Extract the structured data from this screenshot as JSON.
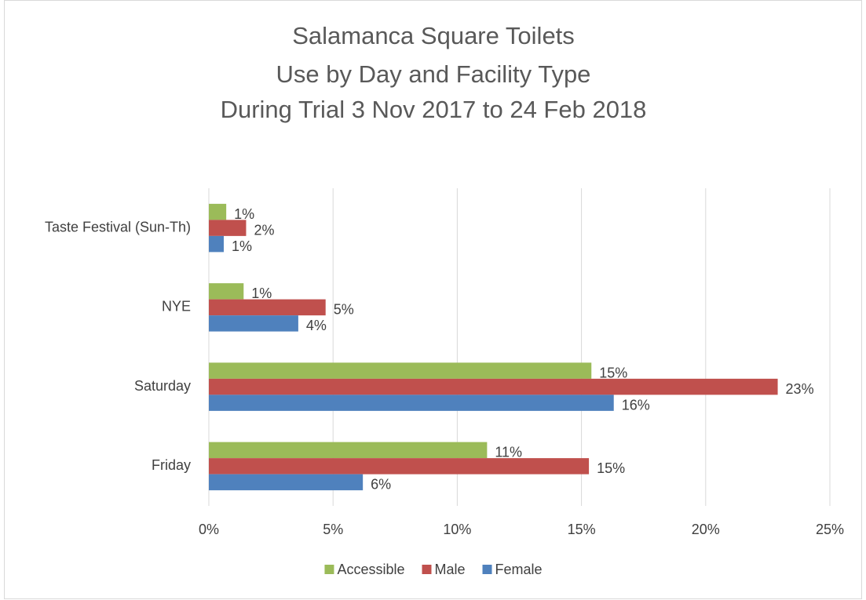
{
  "chart_data": {
    "type": "hbar",
    "title": [
      "Salamanca Square Toilets",
      "Use by Day and Facility Type",
      "During Trial 3 Nov 2017 to 24 Feb 2018"
    ],
    "categories": [
      "Friday",
      "Saturday",
      "NYE",
      "Taste Festival (Sun-Th)"
    ],
    "series": [
      {
        "name": "Accessible",
        "color": "#9bbb59",
        "values": [
          11.2,
          15.4,
          1.4,
          0.7
        ],
        "value_labels": [
          "11%",
          "15%",
          "1%",
          "1%"
        ]
      },
      {
        "name": "Male",
        "color": "#c0504d",
        "values": [
          15.3,
          22.9,
          4.7,
          1.5
        ],
        "value_labels": [
          "15%",
          "23%",
          "5%",
          "2%"
        ]
      },
      {
        "name": "Female",
        "color": "#4f81bd",
        "values": [
          6.2,
          16.3,
          3.6,
          0.6
        ],
        "value_labels": [
          "6%",
          "16%",
          "4%",
          "1%"
        ]
      }
    ],
    "xlim": [
      0,
      25
    ],
    "xticks": [
      {
        "value": 0,
        "label": "0%"
      },
      {
        "value": 5,
        "label": "5%"
      },
      {
        "value": 10,
        "label": "10%"
      },
      {
        "value": 15,
        "label": "15%"
      },
      {
        "value": 20,
        "label": "20%"
      },
      {
        "value": 25,
        "label": "25%"
      }
    ],
    "grid": true,
    "legend": "bottom"
  }
}
